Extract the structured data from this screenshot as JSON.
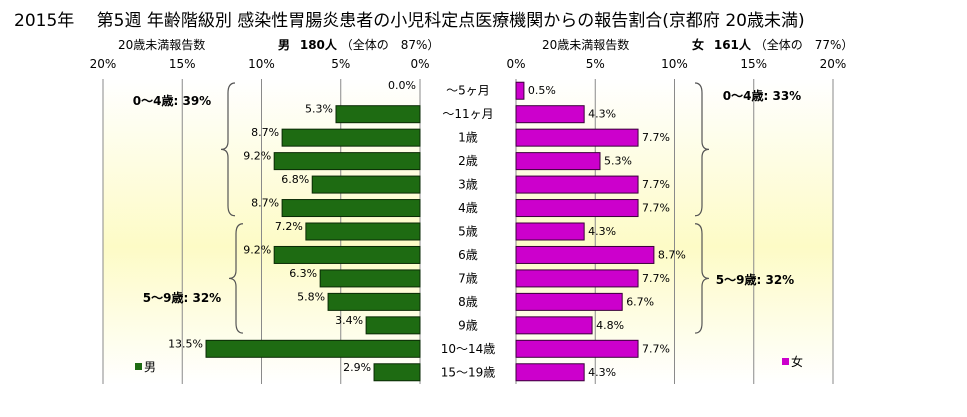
{
  "title": "2015年　 第5週 年齢階級別 感染性胃腸炎患者の小児科定点医療機関からの報告割合(京都府 20歳未満)",
  "male_header": {
    "count_label": "20歳未満報告数",
    "sex": "男",
    "count": "180人",
    "share": "（全体の　87%）"
  },
  "female_header": {
    "count_label": "20歳未満報告数",
    "sex": "女",
    "count": "161人",
    "share": "（全体の　77%）"
  },
  "colors": {
    "male": "#1e6b12",
    "female": "#cc00cc",
    "bg_light": "#ffffff",
    "bg_yellow": "#fdfbc6"
  },
  "chart_data": {
    "type": "bar",
    "categories": [
      "～5ヶ月",
      "～11ヶ月",
      "1歳",
      "2歳",
      "3歳",
      "4歳",
      "5歳",
      "6歳",
      "7歳",
      "8歳",
      "9歳",
      "10～14歳",
      "15～19歳"
    ],
    "series": [
      {
        "name": "男",
        "values": [
          0.0,
          5.3,
          8.7,
          9.2,
          6.8,
          8.7,
          7.2,
          9.2,
          6.3,
          5.8,
          3.4,
          13.5,
          2.9
        ],
        "labels": [
          "0.0%",
          "5.3%",
          "8.7%",
          "9.2%",
          "6.8%",
          "8.7%",
          "7.2%",
          "9.2%",
          "6.3%",
          "5.8%",
          "3.4%",
          "13.5%",
          "2.9%"
        ]
      },
      {
        "name": "女",
        "values": [
          0.5,
          4.3,
          7.7,
          5.3,
          7.7,
          7.7,
          4.3,
          8.7,
          7.7,
          6.7,
          4.8,
          7.7,
          4.3
        ],
        "labels": [
          "0.5%",
          "4.3%",
          "7.7%",
          "5.3%",
          "7.7%",
          "7.7%",
          "4.3%",
          "8.7%",
          "7.7%",
          "6.7%",
          "4.8%",
          "7.7%",
          "4.3%"
        ]
      }
    ],
    "x_ticks": [
      0,
      5,
      10,
      15,
      20
    ],
    "x_tick_labels": [
      "0%",
      "5%",
      "10%",
      "15%",
      "20%"
    ],
    "xlim": [
      0,
      20
    ],
    "grid": true,
    "annotations": {
      "male": [
        "0～4歳: 39%",
        "5～9歳: 32%"
      ],
      "female": [
        "0～4歳: 33%",
        "5～9歳: 32%"
      ]
    },
    "legend": {
      "male": "男",
      "female": "女"
    }
  }
}
